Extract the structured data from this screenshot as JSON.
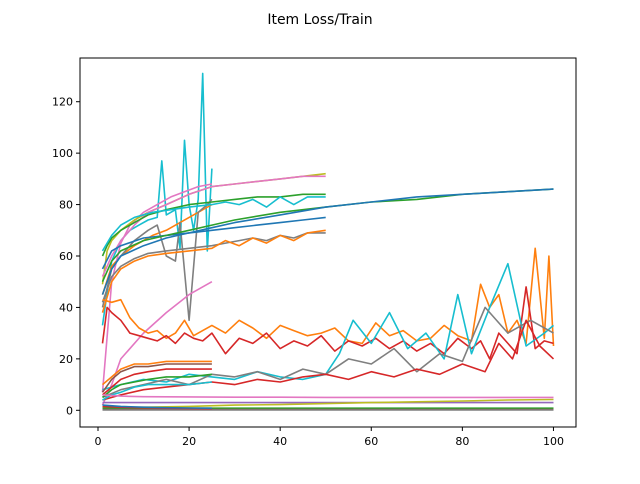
{
  "chart_data": {
    "type": "line",
    "title": "Item Loss/Train",
    "xlabel": "",
    "ylabel": "",
    "xlim": [
      -3.95,
      104.95
    ],
    "ylim": [
      -6.5,
      137
    ],
    "xticks": [
      0,
      20,
      40,
      60,
      80,
      100
    ],
    "yticks": [
      0,
      20,
      40,
      60,
      80,
      100,
      120
    ],
    "grid": false,
    "legend": "none",
    "series": [
      {
        "color": "#17becf",
        "x": [
          1,
          3,
          5,
          7,
          9,
          11,
          13,
          14,
          15,
          17,
          18,
          19,
          20,
          21,
          22,
          23,
          24,
          25
        ],
        "y": [
          33,
          58,
          66,
          70,
          72,
          74,
          75,
          97,
          76,
          78,
          63,
          105,
          80,
          70,
          82,
          131,
          62,
          94
        ]
      },
      {
        "color": "#ff7f0e",
        "x": [
          1,
          3,
          5,
          8,
          10,
          12,
          15,
          18,
          20,
          22,
          25
        ],
        "y": [
          45,
          56,
          60,
          64,
          66,
          68,
          70,
          73,
          75,
          77,
          80
        ]
      },
      {
        "color": "#e377c2",
        "x": [
          1,
          3,
          5,
          7,
          10,
          13,
          16,
          19,
          22,
          25
        ],
        "y": [
          7,
          50,
          65,
          72,
          77,
          80,
          83,
          85,
          87,
          88
        ]
      },
      {
        "color": "#7f7f7f",
        "x": [
          1,
          3,
          5,
          8,
          11,
          13,
          15,
          17,
          18,
          20,
          22,
          24,
          25
        ],
        "y": [
          40,
          55,
          60,
          66,
          70,
          72,
          60,
          58,
          73,
          35,
          77,
          80,
          82
        ]
      },
      {
        "color": "#bcbd22",
        "x": [
          1,
          2,
          3,
          5,
          8,
          11,
          15,
          20,
          25,
          30,
          35,
          40,
          45,
          50
        ],
        "y": [
          49,
          62,
          66,
          70,
          74,
          77,
          80,
          84,
          87,
          88,
          89,
          90,
          91,
          92
        ]
      },
      {
        "color": "#e377c2",
        "x": [
          1,
          3,
          5,
          8,
          11,
          15,
          20,
          25,
          30,
          35,
          40,
          45,
          50
        ],
        "y": [
          52,
          60,
          66,
          72,
          77,
          80,
          84,
          87,
          88,
          89,
          90,
          91,
          91
        ]
      },
      {
        "color": "#2ca02c",
        "x": [
          1,
          2,
          3,
          5,
          8,
          11,
          15,
          20,
          25,
          30,
          35,
          40,
          45,
          50
        ],
        "y": [
          60,
          64,
          67,
          70,
          73,
          76,
          78,
          80,
          81,
          82,
          83,
          83,
          84,
          84
        ]
      },
      {
        "color": "#17becf",
        "x": [
          1,
          3,
          5,
          8,
          12,
          16,
          20,
          25,
          28,
          31,
          34,
          37,
          40,
          43,
          46,
          50
        ],
        "y": [
          62,
          68,
          72,
          75,
          77,
          78,
          79,
          80,
          81,
          80,
          82,
          79,
          83,
          80,
          83,
          83
        ]
      },
      {
        "color": "#1f77b4",
        "x": [
          1,
          3,
          5,
          10,
          15,
          20,
          25,
          30,
          35,
          40,
          45,
          50
        ],
        "y": [
          55,
          62,
          64,
          67,
          68,
          69,
          70,
          71,
          72,
          73,
          74,
          75
        ]
      },
      {
        "color": "#2ca02c",
        "x": [
          1,
          3,
          5,
          10,
          15,
          20,
          25,
          30,
          40,
          50,
          60,
          70,
          80,
          90,
          100
        ],
        "y": [
          50,
          58,
          62,
          66,
          68,
          70,
          72,
          74,
          77,
          79,
          81,
          82,
          84,
          85,
          86
        ]
      },
      {
        "color": "#1f77b4",
        "x": [
          1,
          3,
          5,
          10,
          15,
          20,
          25,
          30,
          40,
          50,
          60,
          70,
          80,
          90,
          100
        ],
        "y": [
          45,
          55,
          60,
          64,
          67,
          69,
          71,
          73,
          76,
          79,
          81,
          83,
          84,
          85,
          86
        ]
      },
      {
        "color": "#7f7f7f",
        "x": [
          1,
          3,
          5,
          8,
          11,
          15,
          20,
          25,
          28,
          31,
          34,
          37,
          40,
          43,
          46,
          50
        ],
        "y": [
          42,
          52,
          56,
          59,
          61,
          62,
          63,
          64,
          65,
          66,
          67,
          66,
          68,
          67,
          69,
          69
        ]
      },
      {
        "color": "#ff7f0e",
        "x": [
          1,
          3,
          5,
          8,
          11,
          15,
          20,
          25,
          28,
          31,
          34,
          37,
          40,
          43,
          46,
          50
        ],
        "y": [
          38,
          50,
          55,
          58,
          60,
          61,
          62,
          63,
          66,
          64,
          67,
          65,
          68,
          66,
          69,
          70
        ]
      },
      {
        "color": "#e377c2",
        "x": [
          1,
          3,
          5,
          10,
          15,
          20,
          25
        ],
        "y": [
          2,
          10,
          20,
          30,
          38,
          45,
          50
        ]
      },
      {
        "color": "#ff7f0e",
        "x": [
          1,
          3,
          5,
          7,
          9,
          11,
          13,
          15,
          17,
          19,
          21,
          23,
          25,
          28,
          31,
          34,
          37,
          40,
          43,
          46,
          49,
          52,
          55,
          58,
          61,
          64,
          67,
          70,
          73,
          76,
          79,
          82,
          84,
          86,
          88,
          90,
          92,
          94,
          96,
          98,
          99,
          100
        ],
        "y": [
          43,
          42,
          43,
          36,
          32,
          30,
          31,
          28,
          30,
          35,
          29,
          31,
          33,
          30,
          35,
          32,
          28,
          33,
          31,
          29,
          30,
          32,
          27,
          26,
          34,
          29,
          31,
          27,
          28,
          33,
          29,
          27,
          49,
          40,
          45,
          30,
          35,
          26,
          63,
          28,
          60,
          25
        ]
      },
      {
        "color": "#d62728",
        "x": [
          1,
          2,
          3,
          5,
          7,
          9,
          11,
          13,
          15,
          17,
          19,
          21,
          23,
          25,
          28,
          31,
          34,
          37,
          40,
          43,
          46,
          49,
          52,
          55,
          58,
          61,
          64,
          67,
          70,
          73,
          76,
          79,
          82,
          84,
          86,
          88,
          90,
          92,
          94,
          96,
          98,
          100
        ],
        "y": [
          26,
          40,
          38,
          35,
          30,
          29,
          28,
          27,
          29,
          26,
          30,
          28,
          27,
          30,
          22,
          28,
          26,
          30,
          24,
          27,
          25,
          29,
          23,
          27,
          25,
          28,
          24,
          27,
          23,
          26,
          22,
          28,
          24,
          27,
          20,
          30,
          26,
          22,
          48,
          24,
          27,
          26
        ]
      },
      {
        "color": "#17becf",
        "x": [
          1,
          5,
          10,
          15,
          20,
          25,
          30,
          35,
          40,
          45,
          50,
          53,
          56,
          60,
          64,
          68,
          72,
          76,
          79,
          82,
          86,
          90,
          94,
          98,
          100
        ],
        "y": [
          8,
          10,
          12,
          11,
          14,
          13,
          12,
          15,
          13,
          12,
          14,
          22,
          35,
          26,
          38,
          24,
          30,
          20,
          45,
          22,
          40,
          57,
          25,
          30,
          33
        ]
      },
      {
        "color": "#7f7f7f",
        "x": [
          1,
          5,
          10,
          15,
          20,
          25,
          30,
          35,
          40,
          45,
          50,
          55,
          60,
          65,
          70,
          75,
          80,
          85,
          90,
          95,
          100
        ],
        "y": [
          5,
          8,
          10,
          12,
          10,
          14,
          13,
          15,
          12,
          16,
          14,
          20,
          18,
          24,
          15,
          22,
          19,
          40,
          30,
          35,
          30
        ]
      },
      {
        "color": "#d62728",
        "x": [
          1,
          5,
          10,
          15,
          20,
          25,
          30,
          35,
          40,
          45,
          50,
          55,
          60,
          65,
          70,
          75,
          80,
          85,
          88,
          91,
          94,
          97,
          100
        ],
        "y": [
          4,
          6,
          8,
          9,
          10,
          11,
          10,
          12,
          11,
          13,
          14,
          12,
          15,
          13,
          16,
          14,
          18,
          15,
          26,
          20,
          35,
          25,
          20
        ]
      },
      {
        "color": "#8c564b",
        "x": [
          1,
          3,
          5,
          8,
          11,
          15,
          20,
          25
        ],
        "y": [
          7,
          12,
          15,
          17,
          17,
          18,
          18,
          18
        ]
      },
      {
        "color": "#ff7f0e",
        "x": [
          1,
          3,
          5,
          8,
          11,
          15,
          20,
          25
        ],
        "y": [
          10,
          13,
          16,
          18,
          18,
          19,
          19,
          19
        ]
      },
      {
        "color": "#d62728",
        "x": [
          1,
          3,
          5,
          8,
          11,
          15,
          20,
          25
        ],
        "y": [
          6,
          9,
          12,
          14,
          15,
          16,
          16,
          16
        ]
      },
      {
        "color": "#2ca02c",
        "x": [
          1,
          3,
          5,
          8,
          11,
          15,
          20,
          25
        ],
        "y": [
          5,
          8,
          10,
          11,
          12,
          13,
          13,
          14
        ]
      },
      {
        "color": "#17becf",
        "x": [
          1,
          3,
          5,
          8,
          11,
          15,
          20,
          25
        ],
        "y": [
          4,
          6,
          7,
          9,
          10,
          10,
          10,
          11
        ]
      },
      {
        "color": "#e377c2",
        "x": [
          1,
          5,
          10,
          20,
          30,
          40,
          50,
          60,
          70,
          80,
          90,
          100
        ],
        "y": [
          6,
          5.5,
          5.3,
          5.2,
          5.1,
          5.1,
          5,
          5,
          5,
          5,
          5,
          5
        ]
      },
      {
        "color": "#9467bd",
        "x": [
          1,
          5,
          10,
          20,
          30,
          40,
          50,
          60,
          70,
          80,
          90,
          100
        ],
        "y": [
          3,
          3,
          3,
          3,
          3,
          3,
          3,
          3,
          3,
          3,
          3,
          3
        ]
      },
      {
        "color": "#bcbd22",
        "x": [
          1,
          10,
          20,
          30,
          40,
          50,
          60,
          70,
          80,
          90,
          100
        ],
        "y": [
          1,
          1.2,
          1.5,
          2,
          2.2,
          2.6,
          3,
          3.3,
          3.6,
          4,
          4.2
        ]
      },
      {
        "color": "#2ca02c",
        "x": [
          1,
          10,
          20,
          30,
          40,
          50,
          60,
          70,
          80,
          90,
          100
        ],
        "y": [
          0.8,
          0.8,
          0.8,
          0.8,
          0.8,
          0.8,
          0.8,
          0.8,
          0.8,
          0.8,
          0.8
        ]
      },
      {
        "color": "#8c564b",
        "x": [
          1,
          10,
          20,
          30,
          40,
          50,
          60,
          70,
          80,
          90,
          100
        ],
        "y": [
          0.3,
          0.3,
          0.3,
          0.3,
          0.3,
          0.3,
          0.3,
          0.3,
          0.3,
          0.3,
          0.3
        ]
      },
      {
        "color": "#7f7f7f",
        "x": [
          1,
          10,
          20,
          30,
          40,
          50,
          60,
          70,
          80,
          90,
          100
        ],
        "y": [
          0.1,
          0.1,
          0.1,
          0.1,
          0.1,
          0.1,
          0.1,
          0.1,
          0.1,
          0.1,
          0.1
        ]
      },
      {
        "color": "#d62728",
        "x": [
          1,
          5,
          10,
          15,
          20,
          25
        ],
        "y": [
          1.5,
          1.2,
          1,
          0.8,
          0.7,
          0.6
        ]
      },
      {
        "color": "#1f77b4",
        "x": [
          1,
          5,
          10,
          15,
          20,
          25
        ],
        "y": [
          2,
          1.5,
          1.2,
          1,
          0.9,
          0.8
        ]
      }
    ]
  }
}
